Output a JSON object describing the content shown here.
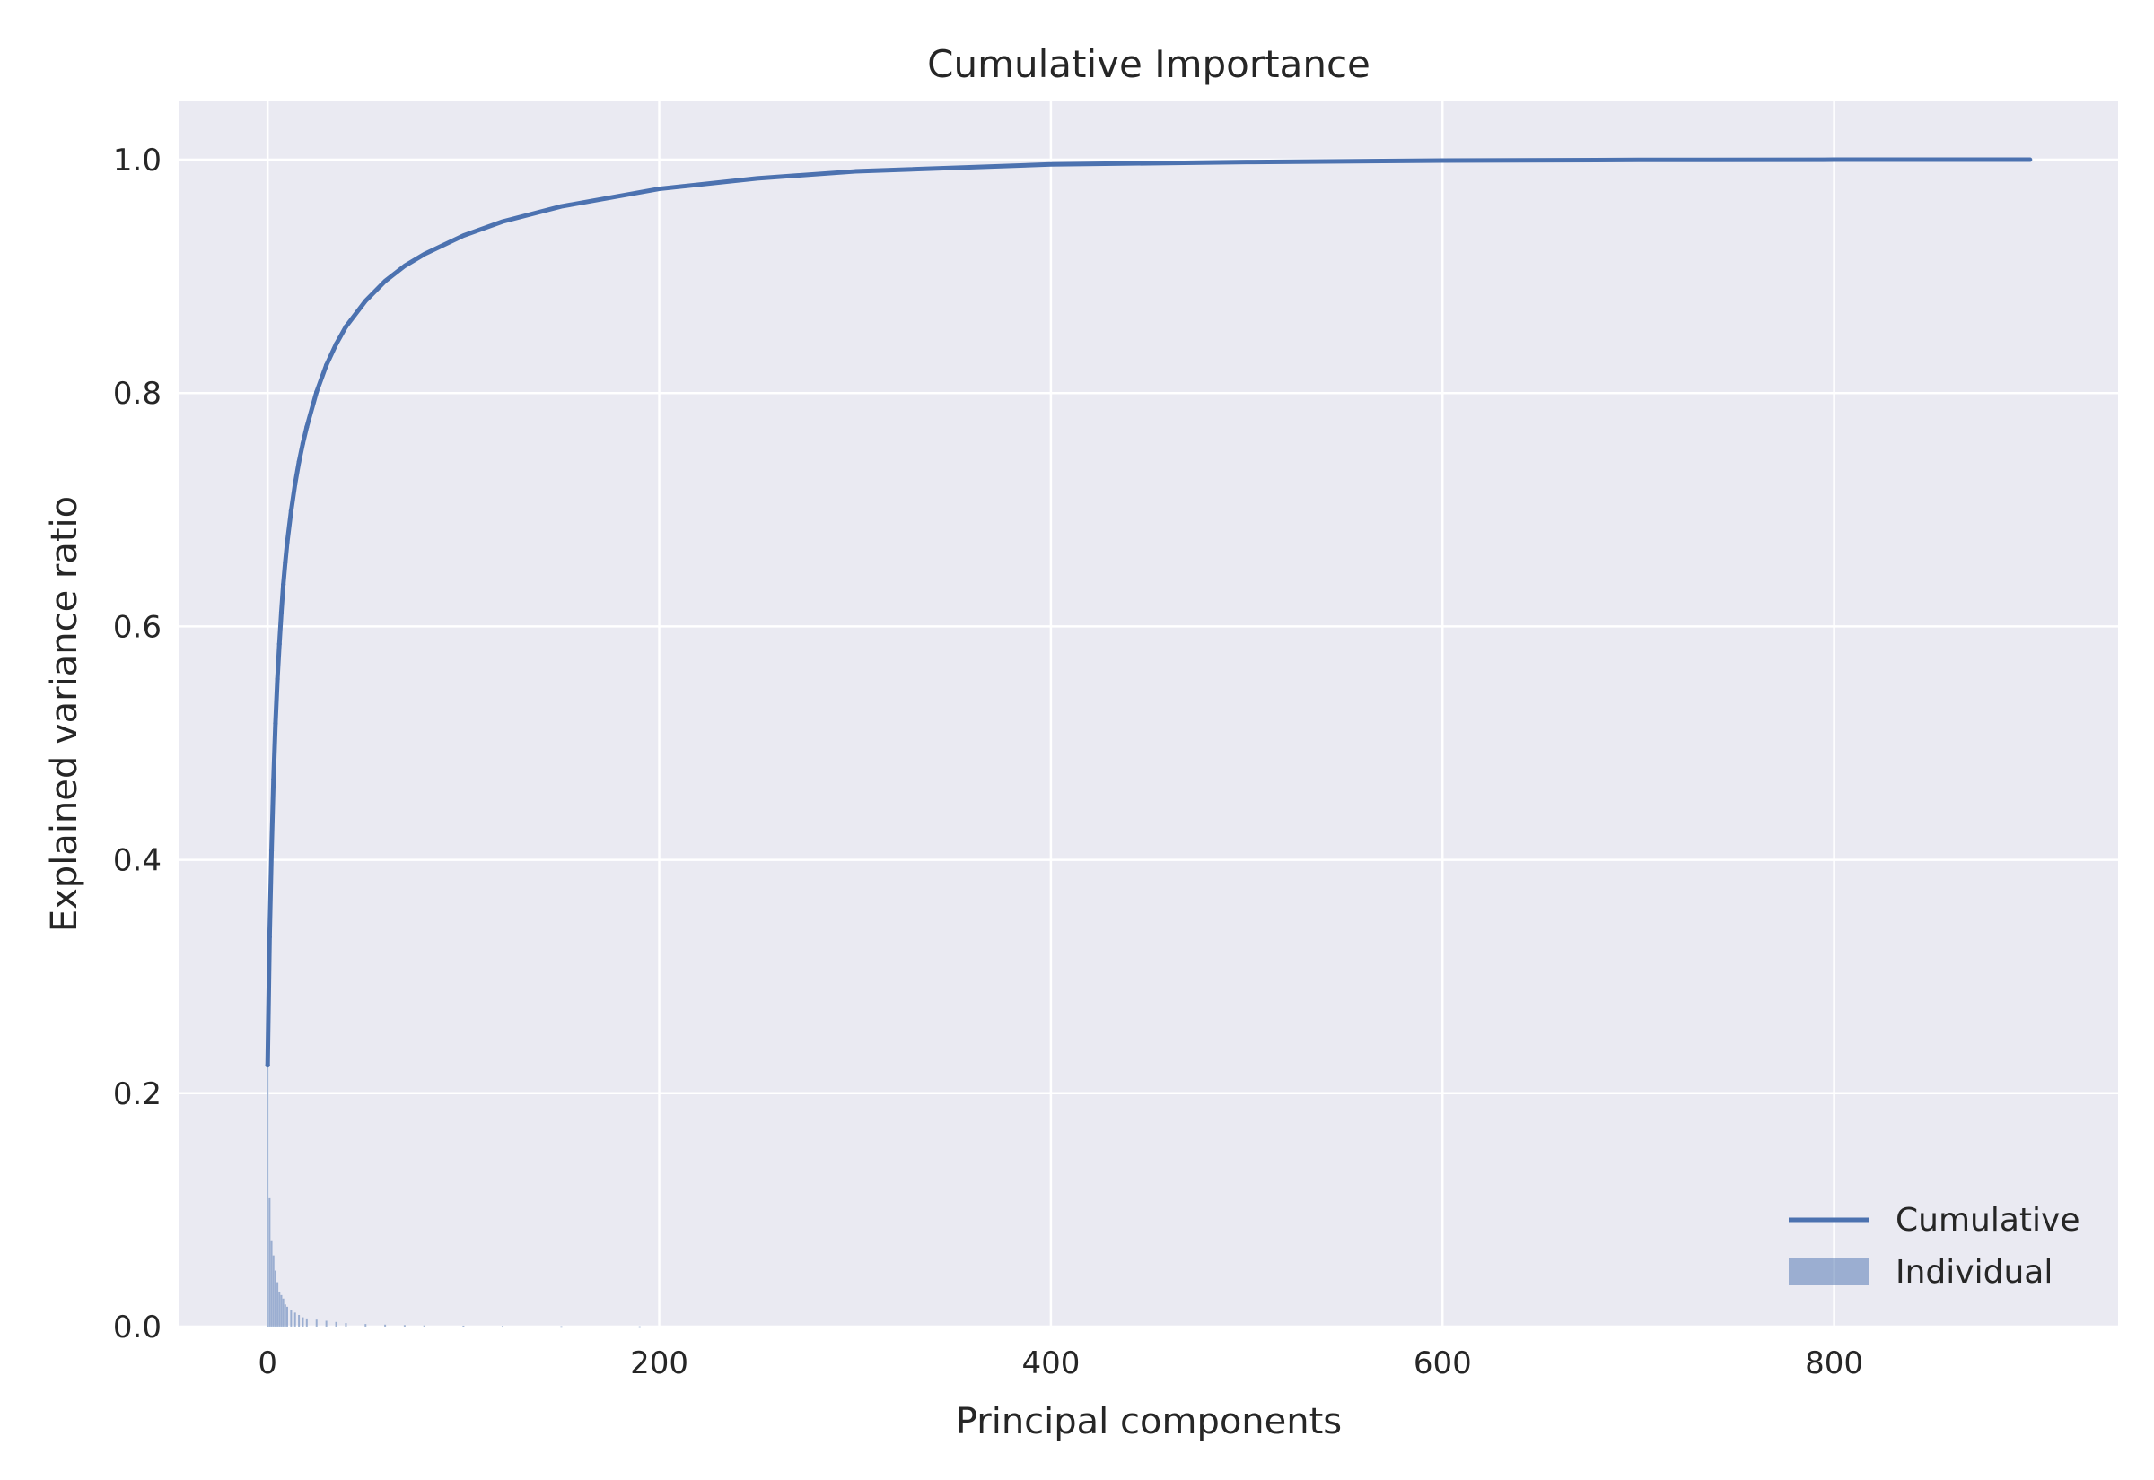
{
  "chart_data": {
    "type": "line",
    "title": "Cumulative Importance",
    "xlabel": "Principal components",
    "ylabel": "Explained variance ratio",
    "xlim": [
      -45,
      945
    ],
    "ylim": [
      0.0,
      1.05
    ],
    "x_ticks": [
      0,
      200,
      400,
      600,
      800
    ],
    "x_tick_labels": [
      "0",
      "200",
      "400",
      "600",
      "800"
    ],
    "y_ticks": [
      0.0,
      0.2,
      0.4,
      0.6,
      0.8,
      1.0
    ],
    "y_tick_labels": [
      "0.0",
      "0.2",
      "0.4",
      "0.6",
      "0.8",
      "1.0"
    ],
    "grid": true,
    "legend_position": "lower-right",
    "colors": {
      "background": "#eaeaf2",
      "grid": "#ffffff",
      "cumulative": "#4c72b0",
      "individual": "#4c72b0"
    },
    "series": [
      {
        "name": "Cumulative",
        "kind": "step-line",
        "x": [
          0,
          1,
          2,
          3,
          4,
          5,
          6,
          7,
          8,
          9,
          10,
          12,
          14,
          16,
          18,
          20,
          25,
          30,
          35,
          40,
          50,
          60,
          70,
          80,
          100,
          120,
          150,
          200,
          250,
          300,
          400,
          500,
          600,
          700,
          800,
          900
        ],
        "values": [
          0.224,
          0.334,
          0.408,
          0.469,
          0.517,
          0.555,
          0.585,
          0.612,
          0.636,
          0.655,
          0.672,
          0.699,
          0.722,
          0.741,
          0.757,
          0.771,
          0.801,
          0.824,
          0.842,
          0.857,
          0.879,
          0.896,
          0.909,
          0.919,
          0.935,
          0.947,
          0.96,
          0.975,
          0.984,
          0.99,
          0.996,
          0.998,
          0.9993,
          0.9998,
          1.0,
          1.0
        ]
      },
      {
        "name": "Individual",
        "kind": "bar",
        "x": [
          0,
          1,
          2,
          3,
          4,
          5,
          6,
          7,
          8,
          9,
          10,
          12,
          14,
          16,
          18,
          20,
          25,
          30,
          35,
          40,
          50,
          60,
          70,
          80,
          100,
          120,
          150,
          190
        ],
        "values": [
          0.224,
          0.11,
          0.074,
          0.061,
          0.048,
          0.038,
          0.03,
          0.027,
          0.024,
          0.019,
          0.017,
          0.014,
          0.012,
          0.01,
          0.008,
          0.007,
          0.006,
          0.005,
          0.004,
          0.003,
          0.0022,
          0.0017,
          0.0013,
          0.001,
          0.0008,
          0.0006,
          0.0004,
          0.0003
        ]
      }
    ]
  }
}
